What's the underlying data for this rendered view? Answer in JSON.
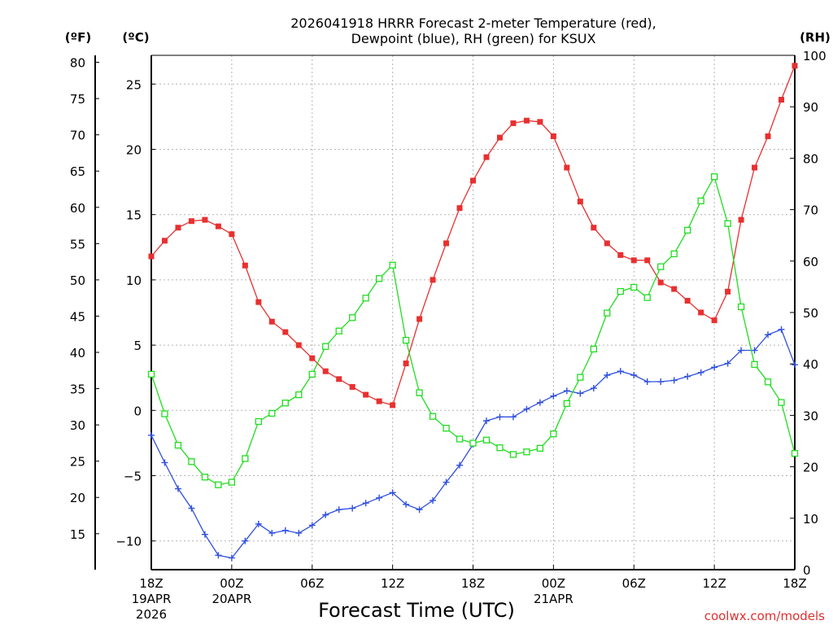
{
  "chart_data": {
    "type": "line",
    "title_line1": "2026041918 HRRR Forecast 2-meter Temperature (red),",
    "title_line2": "Dewpoint (blue), RH (green) for KSUX",
    "xlabel": "Forecast Time (UTC)",
    "credit": "coolwx.com/models",
    "units": {
      "fahrenheit": "(ºF)",
      "celsius": "(ºC)",
      "rh": "(RH)"
    },
    "x_range_hours": [
      0,
      48
    ],
    "celsius_axis": {
      "range": [
        -12.2,
        27.2
      ],
      "ticks": [
        -10,
        -5,
        0,
        5,
        10,
        15,
        20,
        25
      ]
    },
    "fahrenheit_axis": {
      "ticks": [
        15,
        20,
        25,
        30,
        35,
        40,
        45,
        50,
        55,
        60,
        65,
        70,
        75,
        80
      ]
    },
    "rh_axis": {
      "range": [
        0,
        100
      ],
      "ticks": [
        0,
        10,
        20,
        30,
        40,
        50,
        60,
        70,
        80,
        90,
        100
      ]
    },
    "x_ticks": [
      {
        "hour": 0,
        "label": "18Z",
        "sub1": "19APR",
        "sub2": "2026"
      },
      {
        "hour": 6,
        "label": "00Z",
        "sub1": "20APR",
        "sub2": ""
      },
      {
        "hour": 12,
        "label": "06Z",
        "sub1": "",
        "sub2": ""
      },
      {
        "hour": 18,
        "label": "12Z",
        "sub1": "",
        "sub2": ""
      },
      {
        "hour": 24,
        "label": "18Z",
        "sub1": "",
        "sub2": ""
      },
      {
        "hour": 30,
        "label": "00Z",
        "sub1": "21APR",
        "sub2": ""
      },
      {
        "hour": 36,
        "label": "06Z",
        "sub1": "",
        "sub2": ""
      },
      {
        "hour": 42,
        "label": "12Z",
        "sub1": "",
        "sub2": ""
      },
      {
        "hour": 48,
        "label": "18Z",
        "sub1": "",
        "sub2": ""
      }
    ],
    "series": [
      {
        "name": "2-meter Temperature",
        "axis": "celsius",
        "color": "#e83030",
        "marker": "filled-square",
        "values": [
          11.8,
          13.0,
          14.0,
          14.5,
          14.6,
          14.1,
          13.5,
          11.1,
          8.3,
          6.8,
          6.0,
          5.0,
          4.0,
          3.0,
          2.4,
          1.8,
          1.2,
          0.7,
          0.4,
          3.6,
          7.0,
          10.0,
          12.8,
          15.5,
          17.6,
          19.4,
          20.9,
          22.0,
          22.2,
          22.1,
          21.0,
          18.6,
          16.0,
          14.0,
          12.8,
          11.9,
          11.5,
          11.5,
          9.8,
          9.3,
          8.4,
          7.5,
          6.9,
          9.1,
          14.6,
          18.6,
          21.0,
          23.8,
          26.4
        ]
      },
      {
        "name": "Dewpoint",
        "axis": "celsius",
        "color": "#3050e0",
        "marker": "plus",
        "values": [
          -1.9,
          -4.0,
          -6.0,
          -7.5,
          -9.5,
          -11.1,
          -11.3,
          -10.0,
          -8.7,
          -9.4,
          -9.2,
          -9.4,
          -8.8,
          -8.0,
          -7.6,
          -7.5,
          -7.1,
          -6.7,
          -6.3,
          -7.2,
          -7.6,
          -6.9,
          -5.5,
          -4.2,
          -2.6,
          -0.8,
          -0.5,
          -0.5,
          0.1,
          0.6,
          1.1,
          1.5,
          1.3,
          1.7,
          2.7,
          3.0,
          2.7,
          2.2,
          2.2,
          2.3,
          2.6,
          2.9,
          3.3,
          3.6,
          4.6,
          4.6,
          5.8,
          6.2,
          3.5
        ]
      },
      {
        "name": "RH",
        "axis": "rh",
        "color": "#20dd20",
        "marker": "open-square",
        "values": [
          38.0,
          30.3,
          24.2,
          21.0,
          18.0,
          16.5,
          17.0,
          21.6,
          28.8,
          30.4,
          32.4,
          34.0,
          38.0,
          43.4,
          46.4,
          49.0,
          52.8,
          56.6,
          59.2,
          44.6,
          34.4,
          29.8,
          27.5,
          25.4,
          24.6,
          25.2,
          23.7,
          22.4,
          22.9,
          23.6,
          26.4,
          32.3,
          37.4,
          42.9,
          49.9,
          54.1,
          54.9,
          52.9,
          58.9,
          61.4,
          66.0,
          71.7,
          76.4,
          67.3,
          51.1,
          39.9,
          36.5,
          32.5,
          22.6
        ]
      }
    ]
  }
}
